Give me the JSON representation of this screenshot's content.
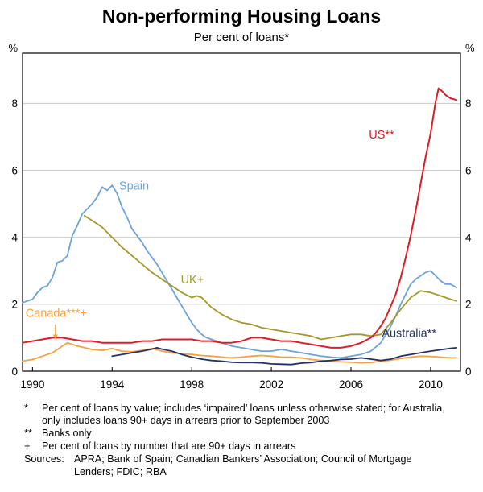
{
  "header": {
    "title": "Non-performing Housing Loans",
    "subtitle": "Per cent of loans*"
  },
  "chart_data": {
    "type": "line",
    "title": "Non-performing Housing Loans",
    "subtitle": "Per cent of loans*",
    "ylabel": "%",
    "xlim": [
      1989.5,
      2011.5
    ],
    "ylim": [
      0,
      9.5
    ],
    "x_ticks": [
      1990,
      1994,
      1998,
      2002,
      2006,
      2010
    ],
    "y_ticks": [
      0,
      2,
      4,
      6,
      8
    ],
    "y_gridlines": [
      2,
      4,
      6,
      8
    ],
    "grid": true,
    "grid_color": "#c9c9c9",
    "axis_color": "#000000",
    "series": [
      {
        "name": "Spain",
        "label": "Spain",
        "color": "#6da3d8",
        "label_x": 1994.35,
        "label_y": 5.42,
        "points": [
          [
            1989.5,
            2.05
          ],
          [
            1990,
            2.15
          ],
          [
            1990.25,
            2.35
          ],
          [
            1990.5,
            2.5
          ],
          [
            1990.75,
            2.55
          ],
          [
            1991,
            2.8
          ],
          [
            1991.25,
            3.25
          ],
          [
            1991.5,
            3.3
          ],
          [
            1991.75,
            3.45
          ],
          [
            1992,
            4.05
          ],
          [
            1992.25,
            4.35
          ],
          [
            1992.5,
            4.7
          ],
          [
            1992.75,
            4.85
          ],
          [
            1993,
            5.0
          ],
          [
            1993.25,
            5.2
          ],
          [
            1993.5,
            5.5
          ],
          [
            1993.75,
            5.4
          ],
          [
            1994,
            5.55
          ],
          [
            1994.25,
            5.3
          ],
          [
            1994.5,
            4.9
          ],
          [
            1994.75,
            4.6
          ],
          [
            1995,
            4.25
          ],
          [
            1995.25,
            4.05
          ],
          [
            1995.5,
            3.85
          ],
          [
            1995.75,
            3.6
          ],
          [
            1996,
            3.4
          ],
          [
            1996.25,
            3.2
          ],
          [
            1996.5,
            2.95
          ],
          [
            1996.75,
            2.7
          ],
          [
            1997,
            2.45
          ],
          [
            1997.25,
            2.2
          ],
          [
            1997.5,
            1.95
          ],
          [
            1997.75,
            1.7
          ],
          [
            1998,
            1.45
          ],
          [
            1998.25,
            1.25
          ],
          [
            1998.5,
            1.1
          ],
          [
            1998.75,
            1.0
          ],
          [
            1999,
            0.95
          ],
          [
            1999.5,
            0.85
          ],
          [
            2000,
            0.75
          ],
          [
            2000.5,
            0.7
          ],
          [
            2001,
            0.65
          ],
          [
            2001.5,
            0.6
          ],
          [
            2002,
            0.6
          ],
          [
            2002.5,
            0.65
          ],
          [
            2003,
            0.6
          ],
          [
            2003.5,
            0.55
          ],
          [
            2004,
            0.5
          ],
          [
            2004.5,
            0.45
          ],
          [
            2005,
            0.42
          ],
          [
            2005.5,
            0.4
          ],
          [
            2006,
            0.45
          ],
          [
            2006.5,
            0.5
          ],
          [
            2007,
            0.6
          ],
          [
            2007.5,
            0.85
          ],
          [
            2008,
            1.35
          ],
          [
            2008.25,
            1.65
          ],
          [
            2008.5,
            2.0
          ],
          [
            2008.75,
            2.3
          ],
          [
            2009,
            2.6
          ],
          [
            2009.25,
            2.75
          ],
          [
            2009.5,
            2.85
          ],
          [
            2009.75,
            2.95
          ],
          [
            2010,
            3.0
          ],
          [
            2010.25,
            2.85
          ],
          [
            2010.5,
            2.7
          ],
          [
            2010.75,
            2.6
          ],
          [
            2011,
            2.6
          ],
          [
            2011.3,
            2.5
          ]
        ]
      },
      {
        "name": "UK",
        "label": "UK+",
        "color": "#a3992a",
        "label_x": 1997.45,
        "label_y": 2.62,
        "points": [
          [
            1992.6,
            4.65
          ],
          [
            1993,
            4.5
          ],
          [
            1993.5,
            4.3
          ],
          [
            1994,
            4.0
          ],
          [
            1994.5,
            3.7
          ],
          [
            1995,
            3.45
          ],
          [
            1995.5,
            3.2
          ],
          [
            1996,
            2.95
          ],
          [
            1996.5,
            2.75
          ],
          [
            1997,
            2.55
          ],
          [
            1997.5,
            2.35
          ],
          [
            1998,
            2.2
          ],
          [
            1998.25,
            2.25
          ],
          [
            1998.5,
            2.2
          ],
          [
            1998.75,
            2.05
          ],
          [
            1999,
            1.9
          ],
          [
            1999.5,
            1.7
          ],
          [
            2000,
            1.55
          ],
          [
            2000.5,
            1.45
          ],
          [
            2001,
            1.4
          ],
          [
            2001.5,
            1.3
          ],
          [
            2002,
            1.25
          ],
          [
            2002.5,
            1.2
          ],
          [
            2003,
            1.15
          ],
          [
            2003.5,
            1.1
          ],
          [
            2004,
            1.05
          ],
          [
            2004.5,
            0.95
          ],
          [
            2005,
            1.0
          ],
          [
            2005.5,
            1.05
          ],
          [
            2006,
            1.1
          ],
          [
            2006.5,
            1.1
          ],
          [
            2007,
            1.05
          ],
          [
            2007.5,
            1.1
          ],
          [
            2008,
            1.45
          ],
          [
            2008.5,
            1.85
          ],
          [
            2009,
            2.2
          ],
          [
            2009.5,
            2.4
          ],
          [
            2010,
            2.35
          ],
          [
            2010.5,
            2.25
          ],
          [
            2011,
            2.15
          ],
          [
            2011.3,
            2.1
          ]
        ]
      },
      {
        "name": "US",
        "label": "US**",
        "color": "#dc1e26",
        "label_x": 2006.9,
        "label_y": 6.95,
        "points": [
          [
            1989.5,
            0.85
          ],
          [
            1990,
            0.9
          ],
          [
            1990.5,
            0.95
          ],
          [
            1991,
            1.0
          ],
          [
            1991.5,
            1.0
          ],
          [
            1992,
            0.95
          ],
          [
            1992.5,
            0.9
          ],
          [
            1993,
            0.9
          ],
          [
            1993.5,
            0.85
          ],
          [
            1994,
            0.85
          ],
          [
            1994.5,
            0.85
          ],
          [
            1995,
            0.85
          ],
          [
            1995.5,
            0.9
          ],
          [
            1996,
            0.9
          ],
          [
            1996.5,
            0.95
          ],
          [
            1997,
            0.95
          ],
          [
            1997.5,
            0.95
          ],
          [
            1998,
            0.95
          ],
          [
            1998.5,
            0.9
          ],
          [
            1999,
            0.9
          ],
          [
            1999.5,
            0.85
          ],
          [
            2000,
            0.85
          ],
          [
            2000.5,
            0.9
          ],
          [
            2001,
            1.0
          ],
          [
            2001.5,
            1.0
          ],
          [
            2002,
            0.95
          ],
          [
            2002.5,
            0.9
          ],
          [
            2003,
            0.9
          ],
          [
            2003.5,
            0.85
          ],
          [
            2004,
            0.8
          ],
          [
            2004.5,
            0.75
          ],
          [
            2005,
            0.7
          ],
          [
            2005.5,
            0.7
          ],
          [
            2006,
            0.75
          ],
          [
            2006.5,
            0.85
          ],
          [
            2007,
            1.0
          ],
          [
            2007.25,
            1.15
          ],
          [
            2007.5,
            1.35
          ],
          [
            2007.75,
            1.6
          ],
          [
            2008,
            1.95
          ],
          [
            2008.25,
            2.3
          ],
          [
            2008.5,
            2.8
          ],
          [
            2008.75,
            3.4
          ],
          [
            2009,
            4.05
          ],
          [
            2009.25,
            4.8
          ],
          [
            2009.5,
            5.6
          ],
          [
            2009.75,
            6.4
          ],
          [
            2010,
            7.1
          ],
          [
            2010.25,
            8.05
          ],
          [
            2010.4,
            8.45
          ],
          [
            2010.6,
            8.35
          ],
          [
            2010.75,
            8.25
          ],
          [
            2011,
            8.15
          ],
          [
            2011.3,
            8.1
          ]
        ]
      },
      {
        "name": "Canada",
        "label": "Canada***+",
        "color": "#f9a13d",
        "label_x": 1989.65,
        "label_y": 1.62,
        "label_arrow": [
          [
            1991.15,
            1.4
          ],
          [
            1991.15,
            0.95
          ]
        ],
        "points": [
          [
            1989.5,
            0.3
          ],
          [
            1990,
            0.35
          ],
          [
            1990.25,
            0.4
          ],
          [
            1990.5,
            0.45
          ],
          [
            1990.75,
            0.5
          ],
          [
            1991,
            0.55
          ],
          [
            1991.25,
            0.65
          ],
          [
            1991.5,
            0.75
          ],
          [
            1991.75,
            0.85
          ],
          [
            1992,
            0.8
          ],
          [
            1992.25,
            0.75
          ],
          [
            1992.5,
            0.72
          ],
          [
            1993,
            0.65
          ],
          [
            1993.5,
            0.62
          ],
          [
            1994,
            0.68
          ],
          [
            1994.25,
            0.63
          ],
          [
            1994.5,
            0.6
          ],
          [
            1995,
            0.58
          ],
          [
            1995.5,
            0.62
          ],
          [
            1996,
            0.68
          ],
          [
            1996.25,
            0.64
          ],
          [
            1996.5,
            0.6
          ],
          [
            1997,
            0.55
          ],
          [
            1997.5,
            0.52
          ],
          [
            1998,
            0.5
          ],
          [
            1998.5,
            0.47
          ],
          [
            1999,
            0.45
          ],
          [
            1999.5,
            0.42
          ],
          [
            2000,
            0.4
          ],
          [
            2000.5,
            0.42
          ],
          [
            2001,
            0.45
          ],
          [
            2001.5,
            0.47
          ],
          [
            2002,
            0.45
          ],
          [
            2002.5,
            0.42
          ],
          [
            2003,
            0.42
          ],
          [
            2003.5,
            0.4
          ],
          [
            2004,
            0.35
          ],
          [
            2004.5,
            0.32
          ],
          [
            2005,
            0.3
          ],
          [
            2005.5,
            0.28
          ],
          [
            2006,
            0.27
          ],
          [
            2006.5,
            0.25
          ],
          [
            2007,
            0.26
          ],
          [
            2007.5,
            0.3
          ],
          [
            2008,
            0.33
          ],
          [
            2008.5,
            0.38
          ],
          [
            2009,
            0.42
          ],
          [
            2009.5,
            0.45
          ],
          [
            2010,
            0.44
          ],
          [
            2010.5,
            0.42
          ],
          [
            2011,
            0.4
          ],
          [
            2011.3,
            0.4
          ]
        ]
      },
      {
        "name": "Australia",
        "label": "Australia**",
        "color": "#233168",
        "label_x": 2007.55,
        "label_y": 1.02,
        "points": [
          [
            1994,
            0.45
          ],
          [
            1994.5,
            0.5
          ],
          [
            1995,
            0.55
          ],
          [
            1995.5,
            0.6
          ],
          [
            1996,
            0.66
          ],
          [
            1996.25,
            0.7
          ],
          [
            1996.5,
            0.66
          ],
          [
            1997,
            0.6
          ],
          [
            1997.5,
            0.5
          ],
          [
            1998,
            0.42
          ],
          [
            1998.5,
            0.36
          ],
          [
            1999,
            0.32
          ],
          [
            1999.5,
            0.3
          ],
          [
            2000,
            0.27
          ],
          [
            2000.5,
            0.26
          ],
          [
            2001,
            0.26
          ],
          [
            2001.5,
            0.25
          ],
          [
            2002,
            0.22
          ],
          [
            2002.5,
            0.21
          ],
          [
            2003,
            0.2
          ],
          [
            2003.5,
            0.24
          ],
          [
            2004,
            0.26
          ],
          [
            2004.5,
            0.3
          ],
          [
            2005,
            0.32
          ],
          [
            2005.5,
            0.35
          ],
          [
            2006,
            0.36
          ],
          [
            2006.5,
            0.4
          ],
          [
            2007,
            0.36
          ],
          [
            2007.5,
            0.32
          ],
          [
            2008,
            0.36
          ],
          [
            2008.5,
            0.45
          ],
          [
            2009,
            0.5
          ],
          [
            2009.5,
            0.55
          ],
          [
            2010,
            0.6
          ],
          [
            2010.5,
            0.64
          ],
          [
            2011,
            0.68
          ],
          [
            2011.3,
            0.7
          ]
        ]
      }
    ]
  },
  "footnotes": [
    {
      "marker": "*",
      "text": "Per cent of loans by value; includes ‘impaired’ loans unless otherwise stated; for Australia, only includes loans 90+ days in arrears prior to September 2003"
    },
    {
      "marker": "**",
      "text": "Banks only"
    },
    {
      "marker": "+",
      "text": "Per cent of loans by number that are 90+ days in arrears"
    }
  ],
  "sources": {
    "label": "Sources:",
    "text": "APRA; Bank of Spain; Canadian Bankers’ Association; Council of Mortgage Lenders; FDIC; RBA"
  }
}
